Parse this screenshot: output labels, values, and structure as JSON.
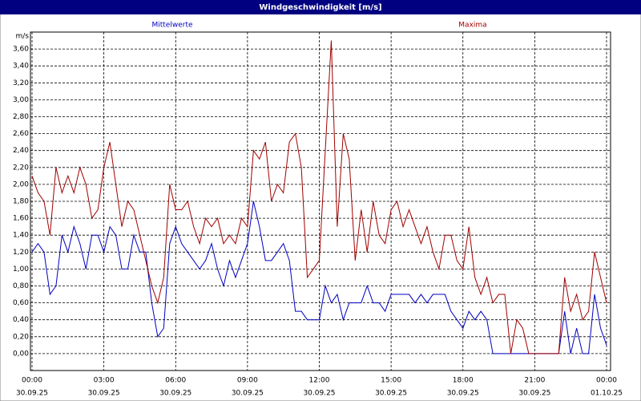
{
  "chart_data": {
    "type": "line",
    "title": "Windgeschwindigkeit [m/s]",
    "ylabel": "m/s",
    "xlim": [
      0,
      24
    ],
    "ylim": [
      -0.2,
      3.8
    ],
    "xticks": [
      {
        "value": 0,
        "label": "00:00",
        "date": "30.09.25"
      },
      {
        "value": 3,
        "label": "03:00",
        "date": "30.09.25"
      },
      {
        "value": 6,
        "label": "06:00",
        "date": "30.09.25"
      },
      {
        "value": 9,
        "label": "09:00",
        "date": "30.09.25"
      },
      {
        "value": 12,
        "label": "12:00",
        "date": "30.09.25"
      },
      {
        "value": 15,
        "label": "15:00",
        "date": "30.09.25"
      },
      {
        "value": 18,
        "label": "18:00",
        "date": "30.09.25"
      },
      {
        "value": 21,
        "label": "21:00",
        "date": "30.09.25"
      },
      {
        "value": 24,
        "label": "00:00",
        "date": "01.10.25"
      }
    ],
    "yticks": [
      {
        "value": 0,
        "label": "0,00"
      },
      {
        "value": 0.2,
        "label": "0,20"
      },
      {
        "value": 0.4,
        "label": "0,40"
      },
      {
        "value": 0.6,
        "label": "0,60"
      },
      {
        "value": 0.8,
        "label": "0,80"
      },
      {
        "value": 1.0,
        "label": "1,00"
      },
      {
        "value": 1.2,
        "label": "1,20"
      },
      {
        "value": 1.4,
        "label": "1,40"
      },
      {
        "value": 1.6,
        "label": "1,60"
      },
      {
        "value": 1.8,
        "label": "1,80"
      },
      {
        "value": 2.0,
        "label": "2,00"
      },
      {
        "value": 2.2,
        "label": "2,20"
      },
      {
        "value": 2.4,
        "label": "2,40"
      },
      {
        "value": 2.6,
        "label": "2,60"
      },
      {
        "value": 2.8,
        "label": "2,80"
      },
      {
        "value": 3.0,
        "label": "3,00"
      },
      {
        "value": 3.2,
        "label": "3,20"
      },
      {
        "value": 3.4,
        "label": "3,40"
      },
      {
        "value": 3.6,
        "label": "3,60"
      }
    ],
    "grid": true,
    "x": [
      0,
      0.25,
      0.5,
      0.75,
      1,
      1.25,
      1.5,
      1.75,
      2,
      2.25,
      2.5,
      2.75,
      3,
      3.25,
      3.5,
      3.75,
      4,
      4.25,
      4.5,
      4.75,
      5,
      5.25,
      5.5,
      5.75,
      6,
      6.25,
      6.5,
      6.75,
      7,
      7.25,
      7.5,
      7.75,
      8,
      8.25,
      8.5,
      8.75,
      9,
      9.25,
      9.5,
      9.75,
      10,
      10.25,
      10.5,
      10.75,
      11,
      11.25,
      11.5,
      11.75,
      12,
      12.25,
      12.5,
      12.75,
      13,
      13.25,
      13.5,
      13.75,
      14,
      14.25,
      14.5,
      14.75,
      15,
      15.25,
      15.5,
      15.75,
      16,
      16.25,
      16.5,
      16.75,
      17,
      17.25,
      17.5,
      17.75,
      18,
      18.25,
      18.5,
      18.75,
      19,
      19.25,
      19.5,
      19.75,
      20,
      20.25,
      20.5,
      20.75,
      21,
      21.25,
      21.5,
      21.75,
      22,
      22.25,
      22.5,
      22.75,
      23,
      23.25,
      23.5,
      23.75,
      24
    ],
    "series": [
      {
        "name": "Mittelwerte",
        "color": "#0000c0",
        "values": [
          1.2,
          1.3,
          1.2,
          0.7,
          0.8,
          1.4,
          1.2,
          1.5,
          1.3,
          1.0,
          1.4,
          1.4,
          1.2,
          1.5,
          1.4,
          1.0,
          1.0,
          1.4,
          1.2,
          1.2,
          0.6,
          0.2,
          0.3,
          1.3,
          1.5,
          1.3,
          1.2,
          1.1,
          1.0,
          1.1,
          1.3,
          1.0,
          0.8,
          1.1,
          0.9,
          1.1,
          1.3,
          1.8,
          1.5,
          1.1,
          1.1,
          1.2,
          1.3,
          1.1,
          0.5,
          0.5,
          0.4,
          0.4,
          0.4,
          0.8,
          0.6,
          0.7,
          0.4,
          0.6,
          0.6,
          0.6,
          0.8,
          0.6,
          0.6,
          0.5,
          0.7,
          0.7,
          0.7,
          0.7,
          0.6,
          0.7,
          0.6,
          0.7,
          0.7,
          0.7,
          0.5,
          0.4,
          0.3,
          0.5,
          0.4,
          0.5,
          0.4,
          0,
          0,
          0,
          0,
          0,
          0,
          0,
          0,
          0,
          0,
          0,
          0,
          0.5,
          0,
          0.3,
          0,
          0,
          0.7,
          0.3,
          0.1
        ]
      },
      {
        "name": "Maxima",
        "color": "#a00000",
        "values": [
          2.1,
          1.9,
          1.8,
          1.4,
          2.2,
          1.9,
          2.1,
          1.9,
          2.2,
          2.0,
          1.6,
          1.7,
          2.2,
          2.5,
          2.0,
          1.5,
          1.8,
          1.7,
          1.4,
          1.1,
          0.8,
          0.6,
          0.9,
          2.0,
          1.7,
          1.7,
          1.8,
          1.5,
          1.3,
          1.6,
          1.5,
          1.6,
          1.3,
          1.4,
          1.3,
          1.6,
          1.5,
          2.4,
          2.3,
          2.5,
          1.8,
          2.0,
          1.9,
          2.5,
          2.6,
          2.2,
          0.9,
          1.0,
          1.1,
          2.4,
          3.7,
          1.5,
          2.6,
          2.3,
          1.1,
          1.7,
          1.2,
          1.8,
          1.4,
          1.3,
          1.7,
          1.8,
          1.5,
          1.7,
          1.5,
          1.3,
          1.5,
          1.2,
          1.0,
          1.4,
          1.4,
          1.1,
          1.0,
          1.5,
          0.9,
          0.7,
          0.9,
          0.6,
          0.7,
          0.7,
          0,
          0.4,
          0.3,
          0,
          0,
          0,
          0,
          0,
          0,
          0.9,
          0.5,
          0.7,
          0.4,
          0.5,
          1.2,
          0.9,
          0.6
        ]
      }
    ]
  }
}
